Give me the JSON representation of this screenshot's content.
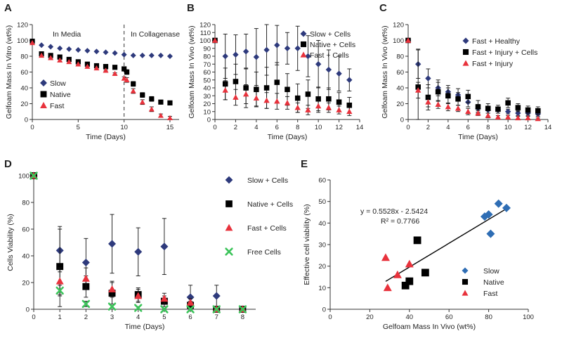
{
  "colors": {
    "slow": "#2e3a7c",
    "native": "#000000",
    "fast": "#e8323c",
    "free": "#3cc45a",
    "trend": "#000000"
  },
  "chart_data": [
    {
      "id": "A",
      "panel_label": "A",
      "type": "line",
      "xlabel": "Time (Days)",
      "ylabel": "Gelfoam Mass In Vitro (wt%)",
      "xlim": [
        0,
        16
      ],
      "ylim": [
        0,
        120
      ],
      "xticks": [
        0,
        5,
        10,
        15
      ],
      "yticks": [
        0,
        20,
        40,
        60,
        80,
        100,
        120
      ],
      "annotations": [
        "In Media",
        "In Collagenase"
      ],
      "divider_x": 10,
      "legend_position": "lower-left",
      "series": [
        {
          "name": "Slow",
          "marker": "diamond",
          "color": "#2e3a7c",
          "x": [
            0,
            1,
            2,
            3,
            4,
            5,
            6,
            7,
            8,
            9,
            10,
            11,
            12,
            13,
            14,
            15
          ],
          "y": [
            99,
            94,
            92,
            90,
            89,
            88,
            87,
            86,
            85,
            84,
            82,
            81,
            81,
            81,
            81,
            80
          ]
        },
        {
          "name": "Native",
          "marker": "square",
          "color": "#000000",
          "x": [
            0,
            1,
            2,
            3,
            4,
            5,
            6,
            7,
            8,
            9,
            10,
            10.3,
            11,
            12,
            13,
            14,
            15
          ],
          "y": [
            99,
            83,
            81,
            79,
            76,
            73,
            70,
            68,
            67,
            66,
            64,
            60,
            45,
            31,
            26,
            22,
            21
          ],
          "err": [
            0,
            1,
            1,
            1,
            1,
            1,
            1,
            1,
            1,
            1,
            2,
            3,
            3,
            3,
            3,
            2,
            2
          ]
        },
        {
          "name": "Fast",
          "marker": "triangle",
          "color": "#e8323c",
          "x": [
            0,
            1,
            2,
            3,
            4,
            5,
            6,
            7,
            8,
            9,
            10,
            10.3,
            11,
            12,
            13,
            14,
            15
          ],
          "y": [
            97,
            81,
            78,
            75,
            73,
            70,
            67,
            65,
            62,
            58,
            52,
            50,
            36,
            22,
            13,
            5,
            2
          ],
          "err": [
            0,
            1,
            1,
            1,
            1,
            1,
            1,
            1,
            1,
            1,
            2,
            3,
            3,
            3,
            3,
            2,
            2
          ]
        }
      ]
    },
    {
      "id": "B",
      "panel_label": "B",
      "type": "scatter",
      "xlabel": "Time (Days)",
      "ylabel": "Gelfoam Mass  In Vivo (wt%)",
      "xlim": [
        0,
        14
      ],
      "ylim": [
        0,
        120
      ],
      "xticks": [
        0,
        2,
        4,
        6,
        8,
        10,
        12,
        14
      ],
      "yticks": [
        0,
        10,
        20,
        30,
        40,
        50,
        60,
        70,
        80,
        90,
        100,
        110,
        120
      ],
      "legend_position": "top-right",
      "series": [
        {
          "name": "Slow + Cells",
          "marker": "diamond",
          "color": "#2e3a7c",
          "x": [
            0,
            1,
            2,
            3,
            4,
            5,
            6,
            7,
            8,
            9,
            10,
            11,
            12,
            13
          ],
          "y": [
            100,
            80,
            82,
            86,
            79,
            88,
            94,
            90,
            90,
            80,
            70,
            63,
            58,
            50
          ],
          "err": [
            0,
            28,
            25,
            22,
            36,
            32,
            25,
            20,
            28,
            26,
            30,
            25,
            22,
            14
          ]
        },
        {
          "name": "Native + Cells",
          "marker": "square",
          "color": "#000000",
          "x": [
            0,
            1,
            2,
            3,
            4,
            5,
            6,
            7,
            8,
            9,
            10,
            11,
            12,
            13
          ],
          "y": [
            100,
            45,
            48,
            40,
            38,
            40,
            47,
            38,
            27,
            32,
            26,
            26,
            22,
            18
          ],
          "err": [
            0,
            20,
            22,
            25,
            22,
            26,
            25,
            20,
            18,
            18,
            15,
            14,
            12,
            10
          ]
        },
        {
          "name": "Fast + Cells",
          "marker": "triangle",
          "color": "#e8323c",
          "x": [
            0,
            1,
            2,
            3,
            4,
            5,
            6,
            7,
            8,
            9,
            10,
            11,
            12,
            13
          ],
          "y": [
            100,
            37,
            28,
            32,
            27,
            24,
            23,
            21,
            15,
            12,
            17,
            15,
            12,
            10
          ],
          "err": [
            0,
            12,
            10,
            12,
            10,
            10,
            10,
            8,
            6,
            6,
            8,
            6,
            5,
            5
          ]
        }
      ]
    },
    {
      "id": "C",
      "panel_label": "C",
      "type": "scatter",
      "xlabel": "Time (Days)",
      "ylabel": "Gelfoam Mass In Vivo (wt%)",
      "xlim": [
        0,
        14
      ],
      "ylim": [
        0,
        120
      ],
      "xticks": [
        0,
        2,
        4,
        6,
        8,
        10,
        12,
        14
      ],
      "yticks": [
        0,
        20,
        40,
        60,
        80,
        100,
        120
      ],
      "legend_position": "top-right",
      "series": [
        {
          "name": "Fast + Healthy",
          "marker": "diamond",
          "color": "#2e3a7c",
          "x": [
            0,
            1,
            2,
            3,
            4,
            5,
            6,
            7,
            8,
            9,
            10,
            11,
            12,
            13
          ],
          "y": [
            100,
            70,
            52,
            40,
            35,
            31,
            22,
            14,
            12,
            12,
            10,
            8,
            8,
            7
          ],
          "err": [
            0,
            18,
            12,
            10,
            8,
            8,
            6,
            5,
            4,
            4,
            3,
            3,
            3,
            3
          ]
        },
        {
          "name": "Fast + Injury + Cells",
          "marker": "square",
          "color": "#000000",
          "x": [
            0,
            1,
            2,
            3,
            4,
            5,
            6,
            7,
            8,
            9,
            10,
            11,
            12,
            13
          ],
          "y": [
            100,
            41,
            28,
            35,
            30,
            26,
            29,
            16,
            14,
            13,
            21,
            15,
            12,
            11
          ],
          "err": [
            0,
            48,
            16,
            12,
            10,
            8,
            8,
            8,
            6,
            5,
            6,
            5,
            5,
            5
          ]
        },
        {
          "name": "Fast + Injury",
          "marker": "triangle",
          "color": "#e8323c",
          "x": [
            0,
            1,
            2,
            3,
            4,
            5,
            6,
            7,
            8,
            9,
            10,
            11,
            12,
            13
          ],
          "y": [
            100,
            37,
            22,
            19,
            16,
            14,
            10,
            8,
            5,
            3,
            3,
            2,
            2,
            1
          ],
          "err": [
            0,
            10,
            6,
            5,
            5,
            4,
            4,
            3,
            3,
            2,
            2,
            2,
            2,
            1
          ]
        }
      ]
    },
    {
      "id": "D",
      "panel_label": "D",
      "type": "scatter",
      "xlabel": "Time (Days)",
      "ylabel": "Cells Viability (%)",
      "xlim": [
        0,
        8.5
      ],
      "ylim": [
        0,
        100
      ],
      "xticks": [
        0,
        1,
        2,
        3,
        4,
        5,
        6,
        7,
        8
      ],
      "yticks": [
        0,
        20,
        40,
        60,
        80,
        100
      ],
      "legend_position": "right",
      "series": [
        {
          "name": "Slow + Cells",
          "marker": "diamond",
          "color": "#2e3a7c",
          "x": [
            0,
            1,
            2,
            3,
            4,
            5,
            6,
            7,
            8
          ],
          "y": [
            100,
            44,
            35,
            49,
            43,
            47,
            9,
            10,
            0
          ],
          "err": [
            0,
            16,
            18,
            22,
            18,
            21,
            9,
            8,
            0
          ]
        },
        {
          "name": "Native + Cells",
          "marker": "square",
          "color": "#000000",
          "x": [
            0,
            1,
            2,
            3,
            4,
            5,
            6,
            7,
            8
          ],
          "y": [
            100,
            32,
            17,
            12,
            11,
            6,
            3,
            0,
            0
          ],
          "err": [
            0,
            30,
            8,
            8,
            5,
            4,
            3,
            0,
            0
          ]
        },
        {
          "name": "Fast + Cells",
          "marker": "triangle",
          "color": "#e8323c",
          "x": [
            0,
            1,
            2,
            3,
            4,
            5,
            6,
            7,
            8
          ],
          "y": [
            100,
            21,
            23,
            15,
            10,
            8,
            5,
            0,
            0
          ],
          "err": [
            0,
            10,
            8,
            6,
            5,
            4,
            3,
            0,
            0
          ]
        },
        {
          "name": "Free Cells",
          "marker": "x",
          "color": "#3cc45a",
          "x": [
            0,
            1,
            2,
            3,
            4,
            5,
            6,
            7,
            8
          ],
          "y": [
            100,
            14,
            4,
            2,
            1,
            0,
            0,
            0,
            0
          ],
          "err": [
            0,
            4,
            2,
            1,
            1,
            0,
            0,
            0,
            0
          ]
        }
      ]
    },
    {
      "id": "E",
      "panel_label": "E",
      "type": "scatter",
      "xlabel": "Gelfoam Mass In Vivo (wt%)",
      "ylabel": "Effective cell viability (%)",
      "xlim": [
        0,
        100
      ],
      "ylim": [
        0,
        60
      ],
      "xticks": [
        0,
        20,
        40,
        60,
        80,
        100
      ],
      "yticks": [
        0,
        10,
        20,
        30,
        40,
        50,
        60
      ],
      "equation": "y = 0.5528x    - 2.5424",
      "r_squared": "R² = 0.7766",
      "trendline": {
        "slope": 0.5528,
        "intercept": -2.5424,
        "x_range": [
          28,
          89
        ]
      },
      "legend_position": "lower-right",
      "series": [
        {
          "name": "Slow",
          "marker": "diamond",
          "color": "#2e6db4",
          "x": [
            78,
            80,
            81,
            85,
            89
          ],
          "y": [
            43,
            44,
            35,
            49,
            47
          ]
        },
        {
          "name": "Native",
          "marker": "square",
          "color": "#000000",
          "x": [
            38,
            40,
            44,
            48
          ],
          "y": [
            11,
            13,
            32,
            17
          ]
        },
        {
          "name": "Fast",
          "marker": "triangle",
          "color": "#e8323c",
          "x": [
            28,
            29,
            34,
            40
          ],
          "y": [
            24,
            10,
            16,
            21
          ]
        }
      ]
    }
  ]
}
